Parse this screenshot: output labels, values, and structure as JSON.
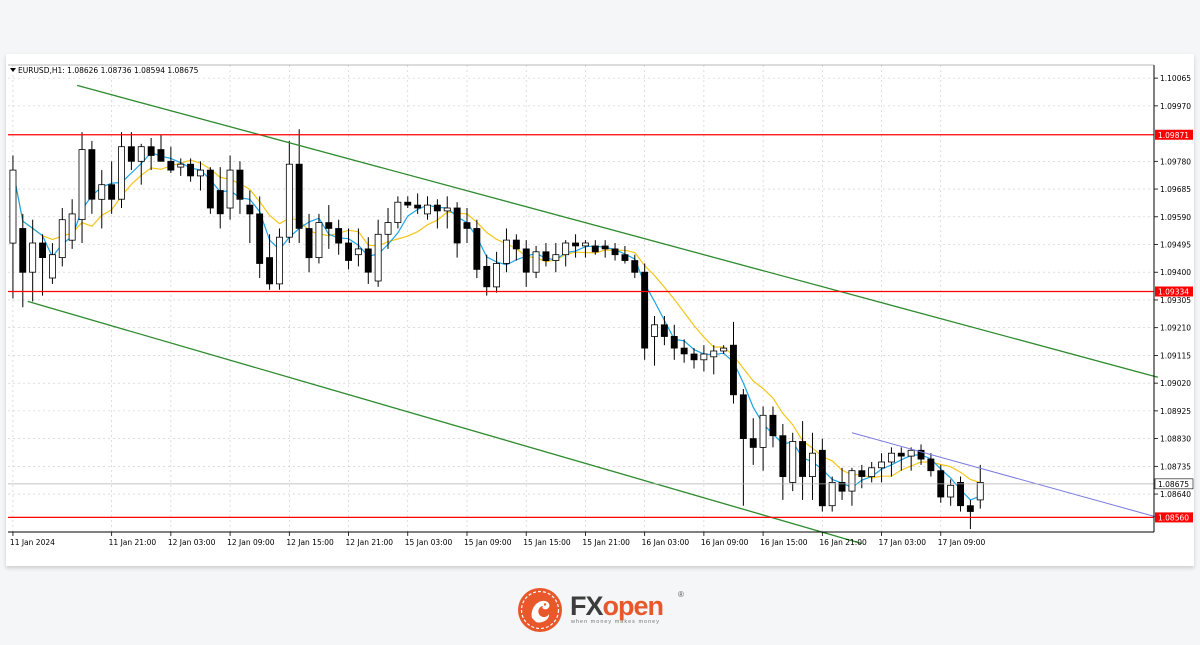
{
  "chart_data": {
    "type": "candlestick",
    "symbol_info": "EURUSD,H1:  1.08626 1.08736 1.08594 1.08675",
    "y_axis": {
      "ylim": [
        1.0851,
        1.1011
      ],
      "ticks": [
        "1.10065",
        "1.09970",
        "1.09780",
        "1.09685",
        "1.09590",
        "1.09495",
        "1.09400",
        "1.09305",
        "1.09210",
        "1.09115",
        "1.09020",
        "1.08925",
        "1.08830",
        "1.08735",
        "1.08640"
      ]
    },
    "x_axis": {
      "ticks": [
        {
          "label": "11 Jan 2024",
          "bar": 0
        },
        {
          "label": "11 Jan 21:00",
          "bar": 10
        },
        {
          "label": "12 Jan 03:00",
          "bar": 16
        },
        {
          "label": "12 Jan 09:00",
          "bar": 22
        },
        {
          "label": "12 Jan 15:00",
          "bar": 28
        },
        {
          "label": "12 Jan 21:00",
          "bar": 34
        },
        {
          "label": "15 Jan 03:00",
          "bar": 40
        },
        {
          "label": "15 Jan 09:00",
          "bar": 46
        },
        {
          "label": "15 Jan 15:00",
          "bar": 52
        },
        {
          "label": "15 Jan 21:00",
          "bar": 58
        },
        {
          "label": "16 Jan 03:00",
          "bar": 64
        },
        {
          "label": "16 Jan 09:00",
          "bar": 70
        },
        {
          "label": "16 Jan 15:00",
          "bar": 76
        },
        {
          "label": "16 Jan 21:00",
          "bar": 82
        },
        {
          "label": "17 Jan 03:00",
          "bar": 88
        },
        {
          "label": "17 Jan 09:00",
          "bar": 94
        }
      ],
      "total_bars": 116
    },
    "grid": true,
    "price_levels": [
      {
        "price": 1.09871,
        "label": "1.09871",
        "color": "#ff0000"
      },
      {
        "price": 1.09334,
        "label": "1.09334",
        "color": "#ff0000"
      },
      {
        "price": 1.0856,
        "label": "1.08560",
        "color": "#ff0000"
      }
    ],
    "current_price": {
      "price": 1.08675,
      "label": "1.08675"
    },
    "channel_lines": [
      {
        "color": "#2e8b2e",
        "x1": 6.5,
        "y1": 1.1004,
        "x2": 116,
        "y2": 1.0904
      },
      {
        "color": "#2e8b2e",
        "x1": 1.5,
        "y1": 1.093,
        "x2": 86,
        "y2": 1.0847
      }
    ],
    "trend_line": {
      "color": "#7b7be0",
      "x1": 85,
      "y1": 1.0885,
      "x2": 116,
      "y2": 1.0856
    },
    "candles": [
      {
        "o": 1.095,
        "h": 1.098,
        "l": 1.0931,
        "c": 1.0975
      },
      {
        "o": 1.0955,
        "h": 1.096,
        "l": 1.0928,
        "c": 1.094
      },
      {
        "o": 1.094,
        "h": 1.0958,
        "l": 1.093,
        "c": 1.095
      },
      {
        "o": 1.095,
        "h": 1.0953,
        "l": 1.0932,
        "c": 1.0945
      },
      {
        "o": 1.0938,
        "h": 1.095,
        "l": 1.0936,
        "c": 1.0946
      },
      {
        "o": 1.0945,
        "h": 1.0962,
        "l": 1.0942,
        "c": 1.0958
      },
      {
        "o": 1.0951,
        "h": 1.0965,
        "l": 1.0948,
        "c": 1.096
      },
      {
        "o": 1.0958,
        "h": 1.0988,
        "l": 1.095,
        "c": 1.0982
      },
      {
        "o": 1.0982,
        "h": 1.0985,
        "l": 1.096,
        "c": 1.0965
      },
      {
        "o": 1.0965,
        "h": 1.0975,
        "l": 1.0955,
        "c": 1.097
      },
      {
        "o": 1.097,
        "h": 1.0978,
        "l": 1.096,
        "c": 1.0965
      },
      {
        "o": 1.0965,
        "h": 1.0988,
        "l": 1.0962,
        "c": 1.0983
      },
      {
        "o": 1.0983,
        "h": 1.0988,
        "l": 1.0975,
        "c": 1.0978
      },
      {
        "o": 1.0978,
        "h": 1.0984,
        "l": 1.097,
        "c": 1.0983
      },
      {
        "o": 1.0983,
        "h": 1.0986,
        "l": 1.0975,
        "c": 1.098
      },
      {
        "o": 1.0982,
        "h": 1.0987,
        "l": 1.0978,
        "c": 1.0978
      },
      {
        "o": 1.0978,
        "h": 1.0983,
        "l": 1.0974,
        "c": 1.0975
      },
      {
        "o": 1.0976,
        "h": 1.0979,
        "l": 1.0973,
        "c": 1.0977
      },
      {
        "o": 1.0977,
        "h": 1.0979,
        "l": 1.0971,
        "c": 1.0973
      },
      {
        "o": 1.0973,
        "h": 1.0978,
        "l": 1.0968,
        "c": 1.0975
      },
      {
        "o": 1.0975,
        "h": 1.0976,
        "l": 1.096,
        "c": 1.0962
      },
      {
        "o": 1.0968,
        "h": 1.0976,
        "l": 1.0955,
        "c": 1.096
      },
      {
        "o": 1.0962,
        "h": 1.098,
        "l": 1.0958,
        "c": 1.0975
      },
      {
        "o": 1.0975,
        "h": 1.0978,
        "l": 1.096,
        "c": 1.0965
      },
      {
        "o": 1.0963,
        "h": 1.0968,
        "l": 1.095,
        "c": 1.096
      },
      {
        "o": 1.096,
        "h": 1.0966,
        "l": 1.0938,
        "c": 1.0943
      },
      {
        "o": 1.0945,
        "h": 1.0953,
        "l": 1.0934,
        "c": 1.0936
      },
      {
        "o": 1.0936,
        "h": 1.0955,
        "l": 1.0934,
        "c": 1.0952
      },
      {
        "o": 1.0952,
        "h": 1.0985,
        "l": 1.095,
        "c": 1.0977
      },
      {
        "o": 1.0977,
        "h": 1.0989,
        "l": 1.095,
        "c": 1.0955
      },
      {
        "o": 1.0955,
        "h": 1.096,
        "l": 1.094,
        "c": 1.0945
      },
      {
        "o": 1.0945,
        "h": 1.096,
        "l": 1.0943,
        "c": 1.0957
      },
      {
        "o": 1.0957,
        "h": 1.0963,
        "l": 1.0948,
        "c": 1.0955
      },
      {
        "o": 1.0955,
        "h": 1.0958,
        "l": 1.0946,
        "c": 1.095
      },
      {
        "o": 1.095,
        "h": 1.0955,
        "l": 1.0941,
        "c": 1.0944
      },
      {
        "o": 1.0946,
        "h": 1.0955,
        "l": 1.0942,
        "c": 1.0948
      },
      {
        "o": 1.0948,
        "h": 1.0952,
        "l": 1.0936,
        "c": 1.094
      },
      {
        "o": 1.0937,
        "h": 1.0958,
        "l": 1.0935,
        "c": 1.0953
      },
      {
        "o": 1.0953,
        "h": 1.0962,
        "l": 1.0948,
        "c": 1.0957
      },
      {
        "o": 1.0957,
        "h": 1.0966,
        "l": 1.0955,
        "c": 1.0964
      },
      {
        "o": 1.0964,
        "h": 1.0966,
        "l": 1.0962,
        "c": 1.0963
      },
      {
        "o": 1.0963,
        "h": 1.0967,
        "l": 1.096,
        "c": 1.0962
      },
      {
        "o": 1.096,
        "h": 1.0966,
        "l": 1.0958,
        "c": 1.0963
      },
      {
        "o": 1.0963,
        "h": 1.0965,
        "l": 1.0955,
        "c": 1.0961
      },
      {
        "o": 1.0961,
        "h": 1.0966,
        "l": 1.0955,
        "c": 1.0962
      },
      {
        "o": 1.0962,
        "h": 1.0964,
        "l": 1.0945,
        "c": 1.095
      },
      {
        "o": 1.0957,
        "h": 1.0962,
        "l": 1.095,
        "c": 1.0955
      },
      {
        "o": 1.0955,
        "h": 1.0958,
        "l": 1.0938,
        "c": 1.0941
      },
      {
        "o": 1.0942,
        "h": 1.0946,
        "l": 1.0932,
        "c": 1.0935
      },
      {
        "o": 1.0935,
        "h": 1.0947,
        "l": 1.0933,
        "c": 1.0943
      },
      {
        "o": 1.0943,
        "h": 1.0955,
        "l": 1.094,
        "c": 1.0951
      },
      {
        "o": 1.0951,
        "h": 1.0953,
        "l": 1.0944,
        "c": 1.0948
      },
      {
        "o": 1.0948,
        "h": 1.0951,
        "l": 1.0935,
        "c": 1.094
      },
      {
        "o": 1.094,
        "h": 1.0949,
        "l": 1.0938,
        "c": 1.0947
      },
      {
        "o": 1.0947,
        "h": 1.095,
        "l": 1.0942,
        "c": 1.0944
      },
      {
        "o": 1.0944,
        "h": 1.095,
        "l": 1.094,
        "c": 1.0946
      },
      {
        "o": 1.0946,
        "h": 1.0951,
        "l": 1.0942,
        "c": 1.095
      },
      {
        "o": 1.095,
        "h": 1.0953,
        "l": 1.0945,
        "c": 1.0949
      },
      {
        "o": 1.0949,
        "h": 1.0951,
        "l": 1.0945,
        "c": 1.095
      },
      {
        "o": 1.0949,
        "h": 1.0951,
        "l": 1.0946,
        "c": 1.0947
      },
      {
        "o": 1.0949,
        "h": 1.0951,
        "l": 1.0945,
        "c": 1.0948
      },
      {
        "o": 1.0948,
        "h": 1.095,
        "l": 1.0944,
        "c": 1.0946
      },
      {
        "o": 1.0946,
        "h": 1.0949,
        "l": 1.0943,
        "c": 1.0944
      },
      {
        "o": 1.0944,
        "h": 1.0946,
        "l": 1.0938,
        "c": 1.094
      },
      {
        "o": 1.094,
        "h": 1.0943,
        "l": 1.091,
        "c": 1.0914
      },
      {
        "o": 1.0918,
        "h": 1.0925,
        "l": 1.0908,
        "c": 1.0922
      },
      {
        "o": 1.0922,
        "h": 1.0925,
        "l": 1.0915,
        "c": 1.0918
      },
      {
        "o": 1.0918,
        "h": 1.0922,
        "l": 1.091,
        "c": 1.0914
      },
      {
        "o": 1.0914,
        "h": 1.0917,
        "l": 1.0909,
        "c": 1.0912
      },
      {
        "o": 1.0912,
        "h": 1.0914,
        "l": 1.0907,
        "c": 1.091
      },
      {
        "o": 1.091,
        "h": 1.0915,
        "l": 1.0906,
        "c": 1.0912
      },
      {
        "o": 1.0911,
        "h": 1.0915,
        "l": 1.0905,
        "c": 1.0913
      },
      {
        "o": 1.0913,
        "h": 1.0915,
        "l": 1.0912,
        "c": 1.0914
      },
      {
        "o": 1.0915,
        "h": 1.0923,
        "l": 1.0895,
        "c": 1.0898
      },
      {
        "o": 1.0898,
        "h": 1.09,
        "l": 1.086,
        "c": 1.0883
      },
      {
        "o": 1.0883,
        "h": 1.089,
        "l": 1.0874,
        "c": 1.088
      },
      {
        "o": 1.088,
        "h": 1.0894,
        "l": 1.0872,
        "c": 1.0891
      },
      {
        "o": 1.0891,
        "h": 1.0894,
        "l": 1.088,
        "c": 1.0884
      },
      {
        "o": 1.0884,
        "h": 1.0888,
        "l": 1.0862,
        "c": 1.087
      },
      {
        "o": 1.0868,
        "h": 1.0885,
        "l": 1.0865,
        "c": 1.0882
      },
      {
        "o": 1.0882,
        "h": 1.0889,
        "l": 1.0862,
        "c": 1.087
      },
      {
        "o": 1.087,
        "h": 1.0885,
        "l": 1.0862,
        "c": 1.0878
      },
      {
        "o": 1.0879,
        "h": 1.0883,
        "l": 1.0858,
        "c": 1.086
      },
      {
        "o": 1.086,
        "h": 1.087,
        "l": 1.0858,
        "c": 1.0868
      },
      {
        "o": 1.0868,
        "h": 1.0873,
        "l": 1.0862,
        "c": 1.0865
      },
      {
        "o": 1.0865,
        "h": 1.0873,
        "l": 1.086,
        "c": 1.0872
      },
      {
        "o": 1.0872,
        "h": 1.0874,
        "l": 1.0866,
        "c": 1.087
      },
      {
        "o": 1.087,
        "h": 1.0875,
        "l": 1.0868,
        "c": 1.0873
      },
      {
        "o": 1.0873,
        "h": 1.0878,
        "l": 1.0868,
        "c": 1.0875
      },
      {
        "o": 1.0875,
        "h": 1.088,
        "l": 1.087,
        "c": 1.0878
      },
      {
        "o": 1.0878,
        "h": 1.088,
        "l": 1.0872,
        "c": 1.0877
      },
      {
        "o": 1.0877,
        "h": 1.088,
        "l": 1.0872,
        "c": 1.0879
      },
      {
        "o": 1.0879,
        "h": 1.0881,
        "l": 1.0874,
        "c": 1.0876
      },
      {
        "o": 1.0876,
        "h": 1.0878,
        "l": 1.087,
        "c": 1.0872
      },
      {
        "o": 1.0872,
        "h": 1.0874,
        "l": 1.0861,
        "c": 1.0863
      },
      {
        "o": 1.0863,
        "h": 1.0869,
        "l": 1.086,
        "c": 1.0867
      },
      {
        "o": 1.0868,
        "h": 1.087,
        "l": 1.0858,
        "c": 1.086
      },
      {
        "o": 1.086,
        "h": 1.0862,
        "l": 1.0852,
        "c": 1.0858
      },
      {
        "o": 1.0862,
        "h": 1.0874,
        "l": 1.0859,
        "c": 1.0868
      }
    ],
    "ma_fast_color": "#1aa3e6",
    "ma_slow_color": "#f5c518"
  },
  "brand": {
    "fx": "FX",
    "open": "open",
    "registered": "®",
    "tagline": "when money makes money"
  },
  "colors": {
    "bull_body": "#ffffff",
    "bear_body": "#000000",
    "candle_outline": "#000000",
    "grid": "#c8c8c8",
    "axis_text": "#000000",
    "level_label_bg": "#ff0000",
    "current_label_bg": "#ffffff",
    "logo_orange": "#e8582a"
  }
}
